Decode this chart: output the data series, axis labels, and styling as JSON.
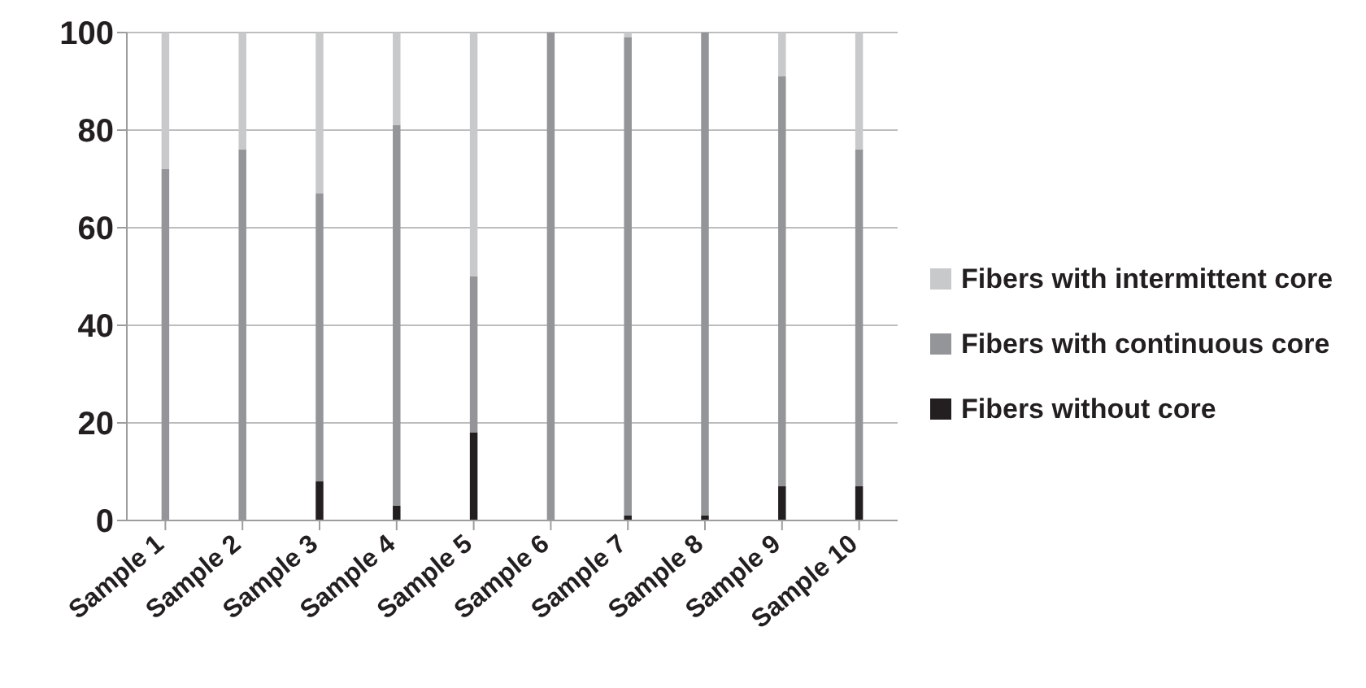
{
  "chart_data": {
    "type": "bar",
    "stacked": true,
    "categories": [
      "Sample 1",
      "Sample 2",
      "Sample 3",
      "Sample 4",
      "Sample 5",
      "Sample 6",
      "Sample 7",
      "Sample 8",
      "Sample 9",
      "Sample 10"
    ],
    "series": [
      {
        "name": "Fibers without core",
        "color": "#231f20",
        "values": [
          0,
          0,
          8,
          3,
          18,
          0,
          1,
          1,
          7,
          7
        ]
      },
      {
        "name": "Fibers with continuous core",
        "color": "#939598",
        "values": [
          72,
          76,
          59,
          78,
          32,
          100,
          98,
          99,
          84,
          69
        ]
      },
      {
        "name": "Fibers with intermittent core",
        "color": "#c8c9cb",
        "values": [
          28,
          24,
          33,
          19,
          50,
          0,
          1,
          0,
          9,
          24
        ]
      }
    ],
    "ylim": [
      0,
      100
    ],
    "yticks": [
      0,
      20,
      40,
      60,
      80,
      100
    ],
    "grid": "y",
    "legend": "right"
  }
}
